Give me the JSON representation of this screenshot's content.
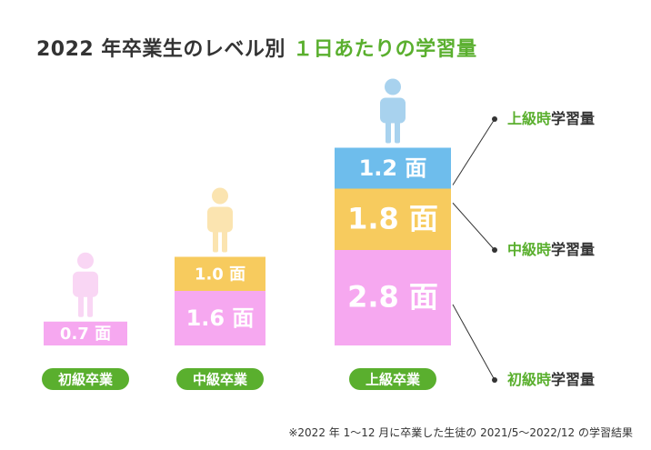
{
  "title": {
    "prefix": "2022 年卒業生のレベル別",
    "highlight": "１日あたりの学習量"
  },
  "colors": {
    "beginner_seg": "#f6a8f0",
    "intermediate_seg": "#f7cb5e",
    "advanced_seg": "#6ebdec",
    "accent_green": "#5aaf2e",
    "figure_beginner": "#f9d6f4",
    "figure_intermediate": "#fbe4b0",
    "figure_advanced": "#a8d2ee"
  },
  "chart_data": {
    "type": "bar",
    "stacked": true,
    "unit": "面",
    "categories": [
      "初級卒業",
      "中級卒業",
      "上級卒業"
    ],
    "series": [
      {
        "name": "初級時学習量",
        "values": [
          0.7,
          1.6,
          2.8
        ]
      },
      {
        "name": "中級時学習量",
        "values": [
          null,
          1.0,
          1.8
        ]
      },
      {
        "name": "上級時学習量",
        "values": [
          null,
          null,
          1.2
        ]
      }
    ]
  },
  "legend": {
    "advanced": {
      "highlight": "上級時",
      "rest": "学習量"
    },
    "intermediate": {
      "highlight": "中級時",
      "rest": "学習量"
    },
    "beginner": {
      "highlight": "初級時",
      "rest": "学習量"
    }
  },
  "footnote": "※2022 年 1〜12 月に卒業した生徒の 2021/5〜2022/12 の学習結果"
}
